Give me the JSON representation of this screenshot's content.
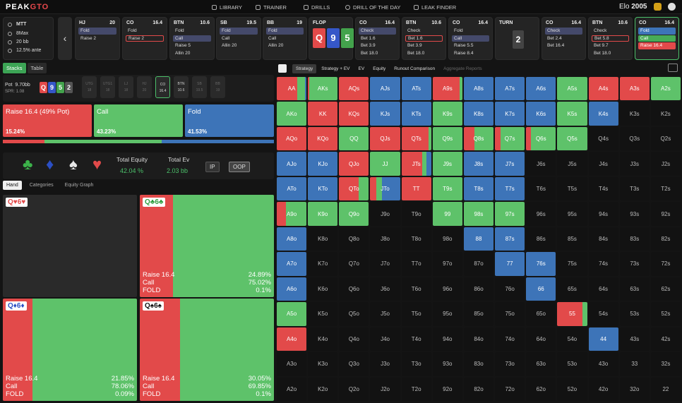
{
  "topbar": {
    "logo": "PEAKGTO",
    "logo_a": "PEAK",
    "logo_b": "GTO",
    "nav": [
      "LIBRARY",
      "TRAINER",
      "DRILLS",
      "DRILL OF THE DAY",
      "LEAK FINDER"
    ],
    "elo_label": "Elo",
    "elo_value": "2005"
  },
  "game_info": {
    "format": "MTT",
    "table": "8Max",
    "stack": "20 bb",
    "ante": "12.5% ante"
  },
  "positions": [
    {
      "pos": "HJ",
      "stack": "20",
      "actions": [
        {
          "t": "Fold",
          "s": "hl"
        },
        {
          "t": "Raise 2",
          "s": ""
        }
      ]
    },
    {
      "pos": "CO",
      "stack": "16.4",
      "actions": [
        {
          "t": "Fold",
          "s": ""
        },
        {
          "t": "Raise 2",
          "s": "red"
        }
      ]
    },
    {
      "pos": "BTN",
      "stack": "10.6",
      "actions": [
        {
          "t": "Fold",
          "s": ""
        },
        {
          "t": "Call",
          "s": "hl"
        },
        {
          "t": "Raise 5",
          "s": ""
        },
        {
          "t": "Allin 20",
          "s": ""
        }
      ]
    },
    {
      "pos": "SB",
      "stack": "19.5",
      "actions": [
        {
          "t": "Fold",
          "s": "hl"
        },
        {
          "t": "Call",
          "s": ""
        },
        {
          "t": "Allin 20",
          "s": ""
        }
      ]
    },
    {
      "pos": "BB",
      "stack": "19",
      "actions": [
        {
          "t": "Fold",
          "s": "hl"
        },
        {
          "t": "Call",
          "s": ""
        },
        {
          "t": "Allin 20",
          "s": ""
        }
      ]
    },
    {
      "pos": "FLOP",
      "stack": "",
      "actions": []
    },
    {
      "pos": "CO",
      "stack": "16.4",
      "actions": [
        {
          "t": "Check",
          "s": "hl"
        },
        {
          "t": "Bet 1.6",
          "s": ""
        },
        {
          "t": "Bet 3.9",
          "s": ""
        },
        {
          "t": "Bet 18.0",
          "s": ""
        }
      ]
    },
    {
      "pos": "BTN",
      "stack": "10.6",
      "actions": [
        {
          "t": "Check",
          "s": ""
        },
        {
          "t": "Bet 1.6",
          "s": "red"
        },
        {
          "t": "Bet 3.9",
          "s": ""
        },
        {
          "t": "Bet 18.0",
          "s": ""
        }
      ]
    },
    {
      "pos": "CO",
      "stack": "16.4",
      "actions": [
        {
          "t": "Fold",
          "s": ""
        },
        {
          "t": "Call",
          "s": "hl"
        },
        {
          "t": "Raise 5.5",
          "s": ""
        },
        {
          "t": "Raise 8.4",
          "s": ""
        }
      ]
    },
    {
      "pos": "TURN",
      "stack": "",
      "actions": []
    },
    {
      "pos": "CO",
      "stack": "16.4",
      "actions": [
        {
          "t": "Check",
          "s": "hl"
        },
        {
          "t": "Bet 2.4",
          "s": ""
        },
        {
          "t": "Bet 16.4",
          "s": ""
        }
      ]
    },
    {
      "pos": "BTN",
      "stack": "10.6",
      "actions": [
        {
          "t": "Check",
          "s": ""
        },
        {
          "t": "Bet 5.8",
          "s": "red"
        },
        {
          "t": "Bet 9.7",
          "s": ""
        },
        {
          "t": "Bet 18.0",
          "s": ""
        }
      ]
    },
    {
      "pos": "CO",
      "stack": "16.4",
      "actions": [
        {
          "t": "Fold",
          "s": "bfold"
        },
        {
          "t": "Call",
          "s": "bcall"
        },
        {
          "t": "Raise 16.4",
          "s": "braise"
        }
      ]
    }
  ],
  "flop_cards": [
    {
      "r": "Q",
      "s": "h"
    },
    {
      "r": "9",
      "s": "d"
    },
    {
      "r": "5",
      "s": "c"
    }
  ],
  "turn_card": "2",
  "stack_tabs": [
    "Stacks",
    "Table"
  ],
  "pot": {
    "label": "Pot",
    "value": "9.70bb",
    "spr": "SPR: 1.08"
  },
  "board_mini": [
    {
      "r": "Q",
      "s": "h"
    },
    {
      "r": "9",
      "s": "d"
    },
    {
      "r": "5",
      "s": "c"
    },
    {
      "r": "2",
      "s": "x"
    }
  ],
  "seats": [
    {
      "p": "UTG",
      "s": "18",
      "st": ""
    },
    {
      "p": "UTG1",
      "s": "18",
      "st": ""
    },
    {
      "p": "LJ",
      "s": "18",
      "st": ""
    },
    {
      "p": "HJ",
      "s": "20",
      "st": ""
    },
    {
      "p": "CO",
      "s": "16.4",
      "st": "act"
    },
    {
      "p": "BTN",
      "s": "10.6",
      "st": "lit"
    },
    {
      "p": "SB",
      "s": "19.5",
      "st": ""
    },
    {
      "p": "BB",
      "s": "19",
      "st": ""
    }
  ],
  "actions": [
    {
      "label": "Raise 16.4 (49% Pot)",
      "pct": "15.24%",
      "color": "#e24a4a"
    },
    {
      "label": "Call",
      "pct": "43.23%",
      "color": "#5ec26a"
    },
    {
      "label": "Fold",
      "pct": "41.53%",
      "color": "#3d74b8"
    }
  ],
  "action_bar": [
    0.1524,
    0.4323,
    0.4153
  ],
  "equity": {
    "eq_label": "Total Equity",
    "eq_value": "42.04 %",
    "ev_label": "Total Ev",
    "ev_value": "2.03 bb",
    "ip": "IP",
    "oop": "OOP"
  },
  "suits": [
    {
      "g": "♣",
      "c": "#3cb34a"
    },
    {
      "g": "♦",
      "c": "#2b4fc4"
    },
    {
      "g": "♠",
      "c": "#e8e8e8"
    },
    {
      "g": "♥",
      "c": "#e24a4a"
    }
  ],
  "subtabs": [
    "Hand",
    "Categories",
    "Equity Graph"
  ],
  "hands": [
    {
      "cards": "Q♥6♥",
      "cls": "r",
      "raise": null
    },
    {
      "cards": "Q♣6♣",
      "cls": "g",
      "raise": 0.2489,
      "call": 0.7502,
      "stats": [
        [
          "Raise 16.4",
          "24.89%"
        ],
        [
          "Call",
          "75.02%"
        ],
        [
          "FOLD",
          "0.1%"
        ]
      ]
    },
    {
      "cards": "Q♦6♦",
      "cls": "b",
      "raise": 0.2185,
      "call": 0.7806,
      "stats": [
        [
          "Raise 16.4",
          "21.85%"
        ],
        [
          "Call",
          "78.06%"
        ],
        [
          "FOLD",
          "0.09%"
        ]
      ]
    },
    {
      "cards": "Q♠6♠",
      "cls": "",
      "raise": 0.3005,
      "call": 0.6985,
      "stats": [
        [
          "Raise 16.4",
          "30.05%"
        ],
        [
          "Call",
          "69.85%"
        ],
        [
          "FOLD",
          "0.1%"
        ]
      ]
    }
  ],
  "right_tabs": [
    "Strategy",
    "Strategy + EV",
    "EV",
    "Equity",
    "Runout Comparison",
    "Aggregate Reports"
  ],
  "grid": [
    [
      "AA:r70g25b5",
      "AKs:r5g95",
      "AQs:r100",
      "AJs:b100",
      "ATs:b100",
      "A9s:r90g10",
      "A8s:b100",
      "A7s:b100",
      "A6s:b100",
      "A5s:g100",
      "A4s:r100",
      "A3s:r100",
      "A2s:g100"
    ],
    [
      "AKo:g100",
      "KK:r100",
      "KQs:r100",
      "KJs:b100",
      "KTs:b100",
      "K9s:g100",
      "K8s:b100",
      "K7s:b100",
      "K6s:b100",
      "K5s:g100",
      "K4s:b100",
      "K3s",
      "K2s"
    ],
    [
      "AQo:r100",
      "KQo:r100",
      "QQ:g100",
      "QJs:r100",
      "QTs:r90g10",
      "Q9s:g100",
      "Q8s:r35g65",
      "Q7s:r20g80",
      "Q6s:r15g85",
      "Q5s:g100",
      "Q4s",
      "Q3s",
      "Q2s"
    ],
    [
      "AJo:b100",
      "KJo:b100",
      "QJo:r100",
      "JJ:g100",
      "JTs:r70g15b15",
      "J9s:g100",
      "J8s:b100",
      "J7s:b100",
      "J6s",
      "J5s",
      "J4s",
      "J3s",
      "J2s"
    ],
    [
      "ATo:b100",
      "KTo:b100",
      "QTo:r65g35",
      "JTo:r20g20b60",
      "TT:r100",
      "T9s:g100",
      "T8s:b100",
      "T7s:b100",
      "T6s",
      "T5s",
      "T4s",
      "T3s",
      "T2s"
    ],
    [
      "A9o:r30g70",
      "K9o:g100",
      "Q9o:g100",
      "J9o",
      "T9o",
      "99:g100",
      "98s:g100",
      "97s:g100",
      "96s",
      "95s",
      "94s",
      "93s",
      "92s"
    ],
    [
      "A8o:b100",
      "K8o",
      "Q8o",
      "J8o",
      "T8o",
      "98o",
      "88:b100",
      "87s:b100",
      "86s",
      "85s",
      "84s",
      "83s",
      "82s"
    ],
    [
      "A7o:b100",
      "K7o",
      "Q7o",
      "J7o",
      "T7o",
      "97o",
      "87o",
      "77:b100",
      "76s:b100",
      "75s",
      "74s",
      "73s",
      "72s"
    ],
    [
      "A6o:b100",
      "K6o",
      "Q6o",
      "J6o",
      "T6o",
      "96o",
      "86o",
      "76o",
      "66:b100",
      "65s",
      "64s",
      "63s",
      "62s"
    ],
    [
      "A5o:g100",
      "K5o",
      "Q5o",
      "J5o",
      "T5o",
      "95o",
      "85o",
      "75o",
      "65o",
      "55:r85g15",
      "54s",
      "53s",
      "52s"
    ],
    [
      "A4o:r100",
      "K4o",
      "Q4o",
      "J4o",
      "T4o",
      "94o",
      "84o",
      "74o",
      "64o",
      "54o",
      "44:b100",
      "43s",
      "42s"
    ],
    [
      "A3o",
      "K3o",
      "Q3o",
      "J3o",
      "T3o",
      "93o",
      "83o",
      "73o",
      "63o",
      "53o",
      "43o",
      "33",
      "32s"
    ],
    [
      "A2o",
      "K2o",
      "Q2o",
      "J2o",
      "T2o",
      "92o",
      "82o",
      "72o",
      "62o",
      "52o",
      "42o",
      "32o",
      "22"
    ]
  ],
  "colors": {
    "raise": "#e24a4a",
    "call": "#5ec26a",
    "fold": "#3d74b8",
    "accent": "#4cc06a"
  }
}
